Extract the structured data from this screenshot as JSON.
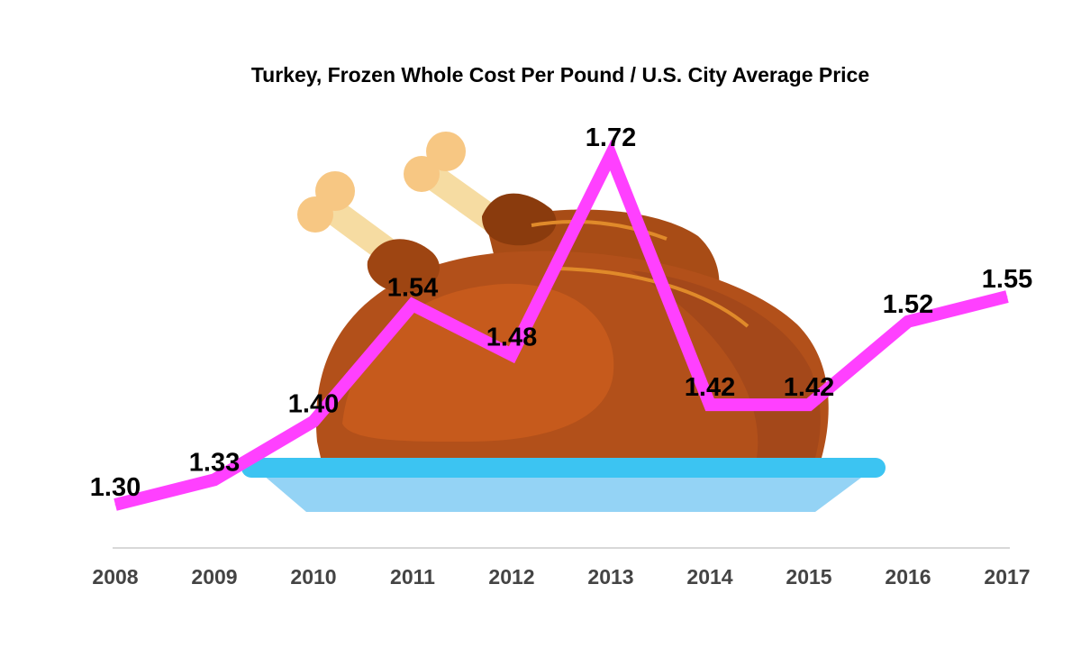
{
  "chart_data": {
    "type": "line",
    "title": "Turkey, Frozen Whole Cost Per Pound / U.S. City Average Price",
    "xlabel": "",
    "ylabel": "",
    "categories": [
      "2008",
      "2009",
      "2010",
      "2011",
      "2012",
      "2013",
      "2014",
      "2015",
      "2016",
      "2017"
    ],
    "values": [
      1.3,
      1.33,
      1.4,
      1.54,
      1.48,
      1.72,
      1.42,
      1.42,
      1.52,
      1.55
    ],
    "data_labels": [
      "1.30",
      "1.33",
      "1.40",
      "1.54",
      "1.48",
      "1.72",
      "1.42",
      "1.42",
      "1.52",
      "1.55"
    ],
    "ylim": [
      1.3,
      1.72
    ],
    "grid": false,
    "legend": "none",
    "line_color": "#ff40ff",
    "axis_color": "#cccccc",
    "tick_label_color": "#444444",
    "background_illustration": "roast-turkey-on-platter"
  }
}
